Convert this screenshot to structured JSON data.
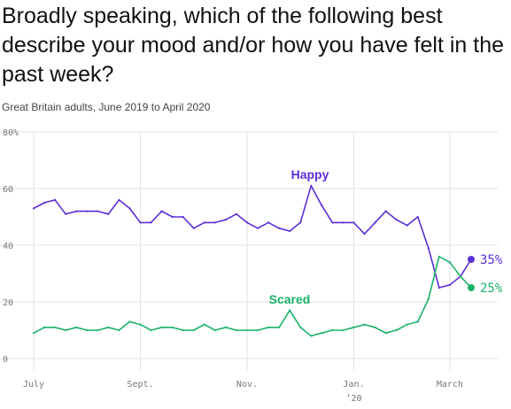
{
  "chart_data": {
    "type": "line",
    "title": "Broadly speaking, which of the following best describe your mood and/or how you have felt in the past week?",
    "subtitle": "Great Britain adults, June 2019 to April 2020",
    "ylim": [
      0,
      80
    ],
    "yticks": [
      {
        "value": 0,
        "label": "0"
      },
      {
        "value": 20,
        "label": "20"
      },
      {
        "value": 40,
        "label": "40"
      },
      {
        "value": 60,
        "label": "60"
      },
      {
        "value": 80,
        "label": "80%"
      }
    ],
    "xticks": [
      {
        "index": 0,
        "label": "July",
        "sublabel": ""
      },
      {
        "index": 10,
        "label": "Sept.",
        "sublabel": ""
      },
      {
        "index": 20,
        "label": "Nov.",
        "sublabel": ""
      },
      {
        "index": 30,
        "label": "Jan.",
        "sublabel": "’20"
      },
      {
        "index": 39,
        "label": "March",
        "sublabel": ""
      }
    ],
    "grid": true,
    "series": [
      {
        "name": "Happy",
        "color": "#5b2fd6",
        "end_label": "35%",
        "values": [
          53,
          55,
          56,
          51,
          52,
          52,
          52,
          51,
          56,
          53,
          48,
          48,
          52,
          50,
          50,
          46,
          48,
          48,
          49,
          51,
          48,
          46,
          48,
          46,
          45,
          48,
          61,
          54,
          48,
          48,
          48,
          44,
          48,
          52,
          49,
          47,
          50,
          39,
          25,
          26,
          29,
          35
        ]
      },
      {
        "name": "Scared",
        "color": "#1bb36a",
        "end_label": "25%",
        "values": [
          9,
          11,
          11,
          10,
          11,
          10,
          10,
          11,
          10,
          13,
          12,
          10,
          11,
          11,
          10,
          10,
          12,
          10,
          11,
          10,
          10,
          10,
          11,
          11,
          17,
          11,
          8,
          9,
          10,
          10,
          11,
          12,
          11,
          9,
          10,
          12,
          13,
          21,
          36,
          34,
          29,
          25
        ]
      }
    ]
  }
}
